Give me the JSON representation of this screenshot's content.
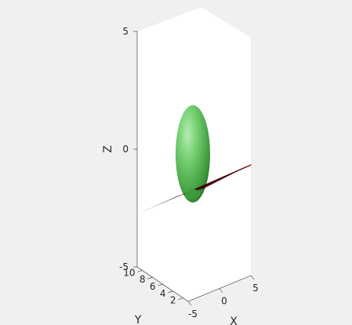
{
  "chart_data": {
    "type": "3d-surface",
    "title": "",
    "xlabel": "X",
    "ylabel": "Y",
    "zlabel": "Z",
    "xlim": [
      -5,
      5
    ],
    "ylim": [
      1,
      11
    ],
    "zlim": [
      -5,
      5
    ],
    "xticks": [
      "-5",
      "0",
      "5"
    ],
    "yticks": [
      "2",
      "4",
      "6",
      "8",
      "10"
    ],
    "zticks": [
      "-5",
      "0",
      "5"
    ],
    "grid": false,
    "box": "on",
    "objects": [
      {
        "kind": "ellipsoid",
        "center": [
          0,
          6,
          0
        ],
        "radii": [
          1,
          1,
          3.5
        ],
        "color": "#5cb85c"
      },
      {
        "kind": "plane",
        "color": "#7a0f0f"
      }
    ]
  }
}
